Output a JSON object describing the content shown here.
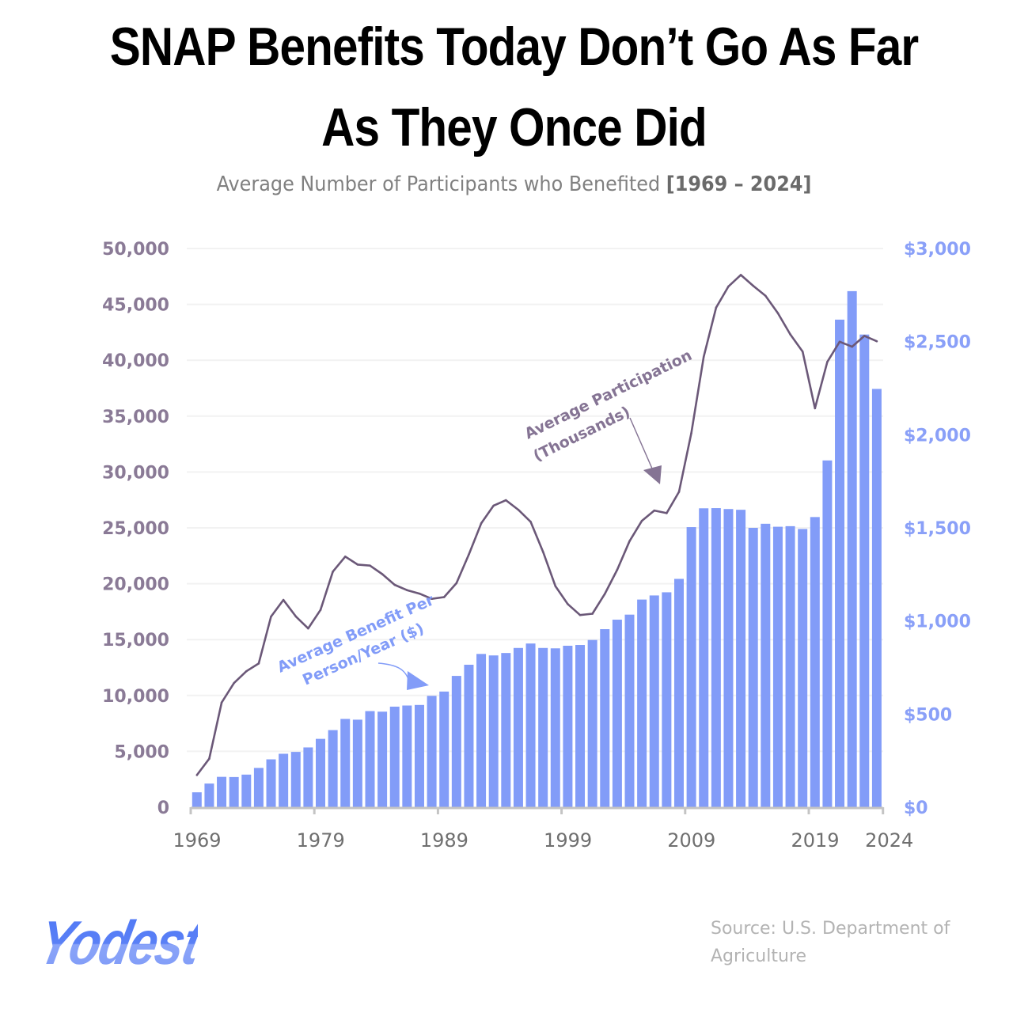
{
  "title_line1": "SNAP Benefits Today Don’t Go As Far",
  "title_line2": "As They Once Did",
  "subtitle_text": "Average Number of Participants who Benefited ",
  "subtitle_range": "[1969 – 2024]",
  "source": "Source: U.S. Department of Agriculture",
  "logo": "Yodest",
  "colors": {
    "bars": "#829cf8",
    "line": "#6b5878",
    "left_axis": "#8a7a96",
    "right_axis": "#8aa0f8",
    "grid": "#f2f2f2"
  },
  "chart_data": {
    "type": "bar+line",
    "title": "SNAP Benefits Today Don’t Go As Far As They Once Did",
    "x": [
      1969,
      1970,
      1971,
      1972,
      1973,
      1974,
      1975,
      1976,
      1977,
      1978,
      1979,
      1980,
      1981,
      1982,
      1983,
      1984,
      1985,
      1986,
      1987,
      1988,
      1989,
      1990,
      1991,
      1992,
      1993,
      1994,
      1995,
      1996,
      1997,
      1998,
      1999,
      2000,
      2001,
      2002,
      2003,
      2004,
      2005,
      2006,
      2007,
      2008,
      2009,
      2010,
      2011,
      2012,
      2013,
      2014,
      2015,
      2016,
      2017,
      2018,
      2019,
      2020,
      2021,
      2022,
      2023,
      2024
    ],
    "x_ticks": [
      "1969",
      "1979",
      "1989",
      "1999",
      "2009",
      "2019",
      "2024"
    ],
    "grid": true,
    "left_axis": {
      "range": [
        0,
        50000
      ],
      "ticks": [
        "0",
        "5,000",
        "10,000",
        "15,000",
        "20,000",
        "25,000",
        "30,000",
        "35,000",
        "40,000",
        "45,000",
        "50,000"
      ]
    },
    "right_axis": {
      "range": [
        0,
        3000
      ],
      "ticks": [
        "$0",
        "$500",
        "$1,000",
        "$1,500",
        "$2,000",
        "$2,500",
        "$3,000"
      ]
    },
    "series": [
      {
        "name": "Average Benefit Per Person/Year ($)",
        "type": "bar",
        "axis": "right",
        "values": [
          80,
          127,
          163,
          162,
          175,
          211,
          257,
          287,
          297,
          321,
          367,
          414,
          474,
          470,
          516,
          513,
          540,
          546,
          549,
          598,
          621,
          705,
          765,
          823,
          815,
          828,
          855,
          879,
          855,
          853,
          867,
          871,
          898,
          956,
          1007,
          1034,
          1115,
          1137,
          1154,
          1226,
          1504,
          1605,
          1606,
          1601,
          1597,
          1500,
          1522,
          1506,
          1509,
          1494,
          1558,
          1862,
          2618,
          2771,
          2538,
          2246
        ]
      },
      {
        "name": "Average Participation (Thousands)",
        "type": "line",
        "axis": "left",
        "values": [
          2878,
          4340,
          9368,
          11109,
          12166,
          12862,
          17064,
          18549,
          17077,
          16001,
          17653,
          21082,
          22430,
          21717,
          21625,
          20854,
          19899,
          19429,
          19113,
          18645,
          18806,
          20049,
          22625,
          25407,
          26987,
          27474,
          26619,
          25543,
          22858,
          19791,
          18183,
          17194,
          17318,
          19096,
          21250,
          23811,
          25628,
          26549,
          26316,
          28223,
          33490,
          40302,
          44709,
          46609,
          47636,
          46664,
          45767,
          44220,
          42317,
          40776,
          35702,
          39853,
          41657,
          41209,
          42179,
          41700
        ]
      }
    ],
    "annotations": {
      "line_label_1": "Average Participation",
      "line_label_2": "(Thousands)",
      "bar_label_1": "Average Benefit Per",
      "bar_label_2": "Person/Year ($)"
    }
  }
}
